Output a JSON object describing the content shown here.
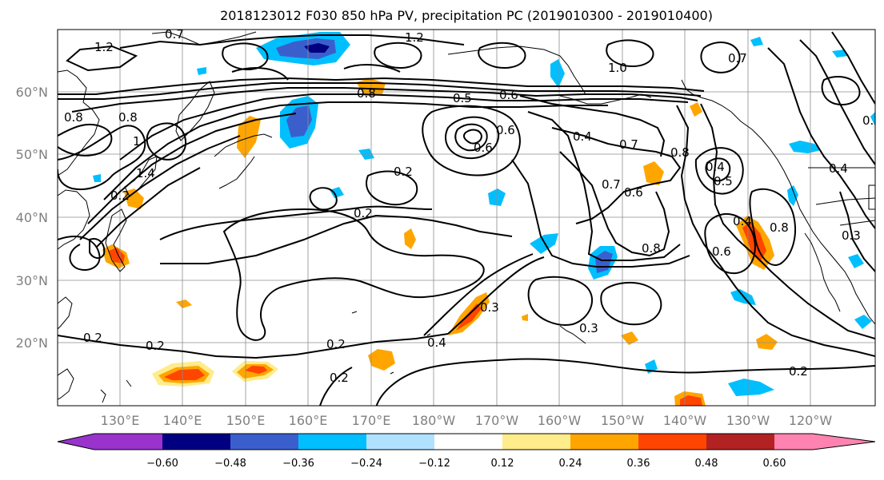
{
  "title": "2018123012 F030 850 hPa PV, precipitation PC (2019010300 - 2019010400)",
  "lat_labels": [
    "60°N",
    "50°N",
    "40°N",
    "30°N",
    "20°N"
  ],
  "lon_labels": [
    "130°E",
    "140°E",
    "150°E",
    "160°E",
    "170°E",
    "180°W",
    "170°W",
    "160°W",
    "150°W",
    "140°W",
    "130°W",
    "120°W"
  ],
  "colorbar": {
    "colors": [
      "#9933cc",
      "#000080",
      "#3a5fcd",
      "#00bfff",
      "#b0e2ff",
      "#ffffff",
      "#ffec8b",
      "#ffa500",
      "#ff4500",
      "#b22222",
      "#ff83b0"
    ],
    "tick_labels": [
      "−0.60",
      "−0.48",
      "−0.36",
      "−0.24",
      "−0.12",
      "0.12",
      "0.24",
      "0.36",
      "0.48",
      "0.60"
    ]
  },
  "contour_labels": [
    "1.2",
    "0.7",
    "1.2",
    "1.0",
    "0.7",
    "0.8",
    "0.8",
    "0.5",
    "0.6",
    "0.8",
    "1",
    "1.4",
    "0.6",
    "0.6",
    "0.4",
    "0.7",
    "0.8",
    "0.2",
    "0.2",
    "0.7",
    "0.6",
    "0.4",
    "0.5",
    "0.4",
    "0.8",
    "0.6",
    "0.8",
    "0.3",
    "0.4",
    "0.3",
    "0.2",
    "0.2",
    "0.2",
    "0.2",
    "0.3",
    "0.2",
    "0.2",
    "0.3",
    "0.4"
  ]
}
